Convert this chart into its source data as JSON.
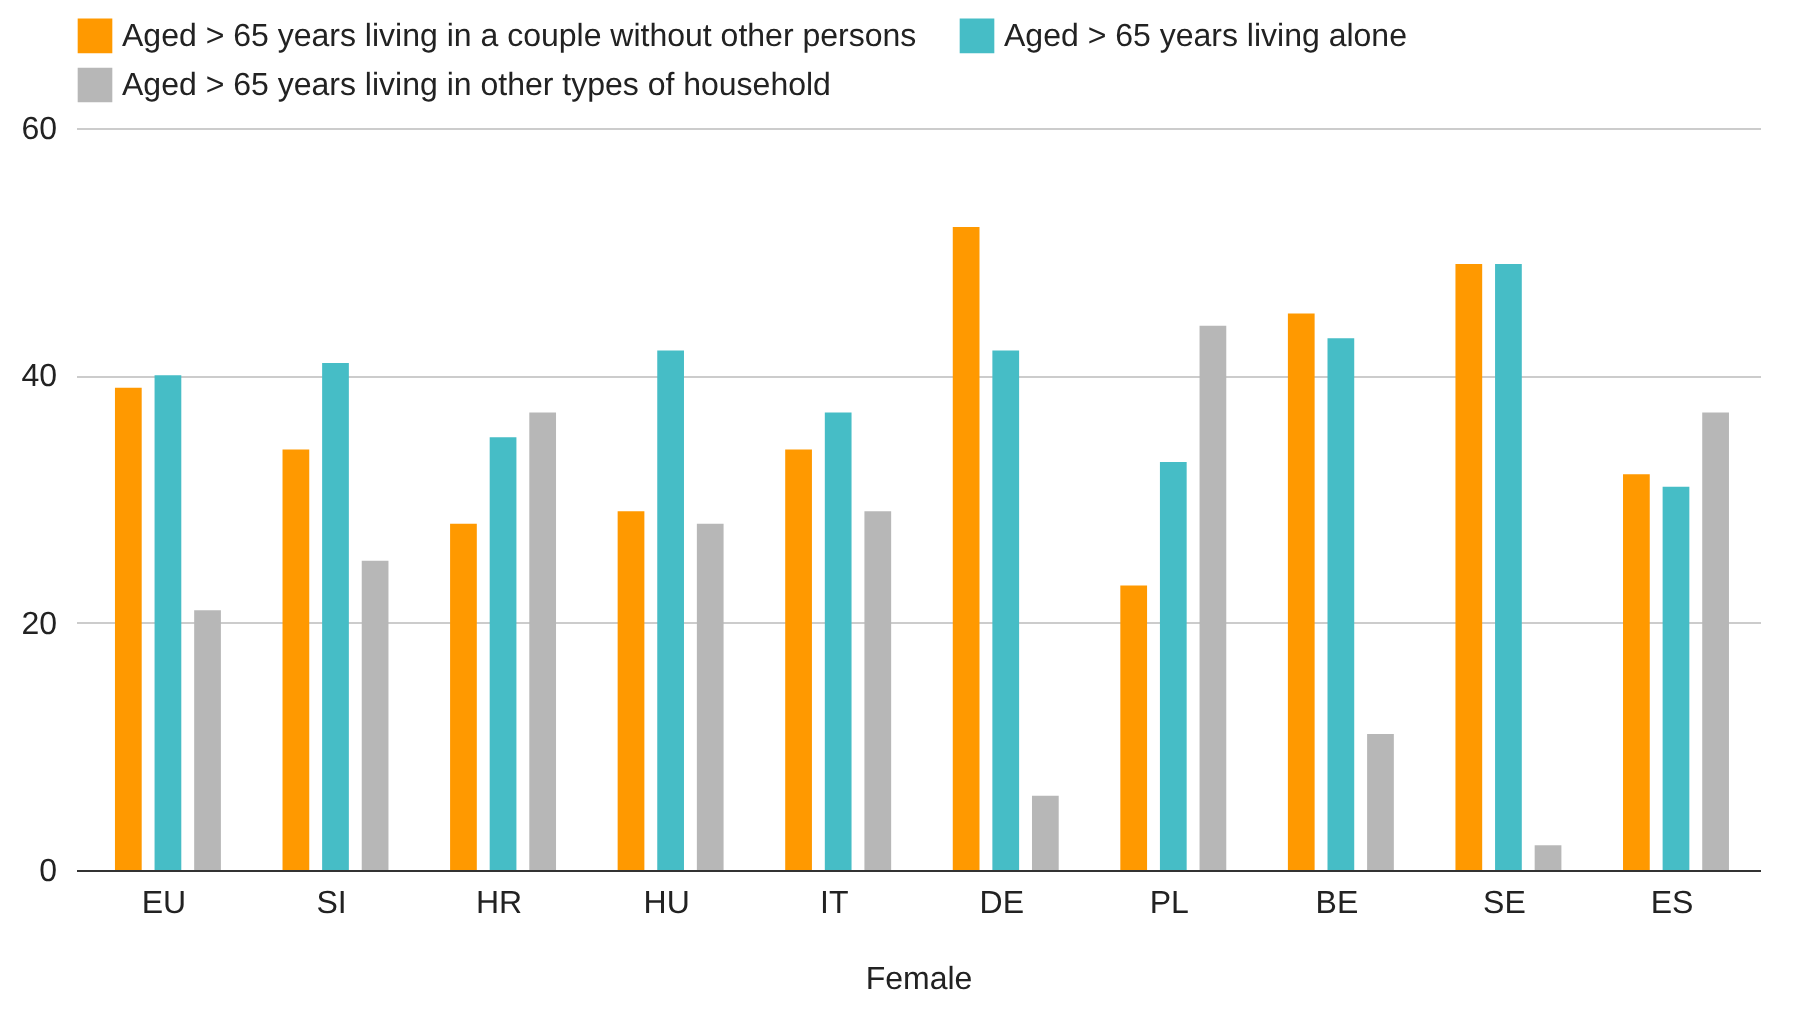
{
  "chart_data": {
    "type": "bar",
    "xlabel": "Female",
    "categories": [
      "EU",
      "SI",
      "HR",
      "HU",
      "IT",
      "DE",
      "PL",
      "BE",
      "SE",
      "ES"
    ],
    "series": [
      {
        "name": "Aged > 65 years living in a couple without other persons",
        "color": "#ff9900",
        "values": [
          39,
          34,
          28,
          29,
          34,
          52,
          23,
          45,
          49,
          32
        ]
      },
      {
        "name": "Aged > 65 years living alone",
        "color": "#46bdc6",
        "values": [
          40,
          41,
          35,
          42,
          37,
          42,
          33,
          43,
          49,
          31
        ]
      },
      {
        "name": "Aged > 65 years living in other types of household",
        "color": "#b7b7b7",
        "values": [
          21,
          25,
          37,
          28,
          29,
          6,
          44,
          11,
          2,
          37
        ]
      }
    ],
    "ylim": [
      0,
      60
    ],
    "yticks": [
      0,
      20,
      40,
      60
    ],
    "grid": "y",
    "legend": "top left"
  }
}
